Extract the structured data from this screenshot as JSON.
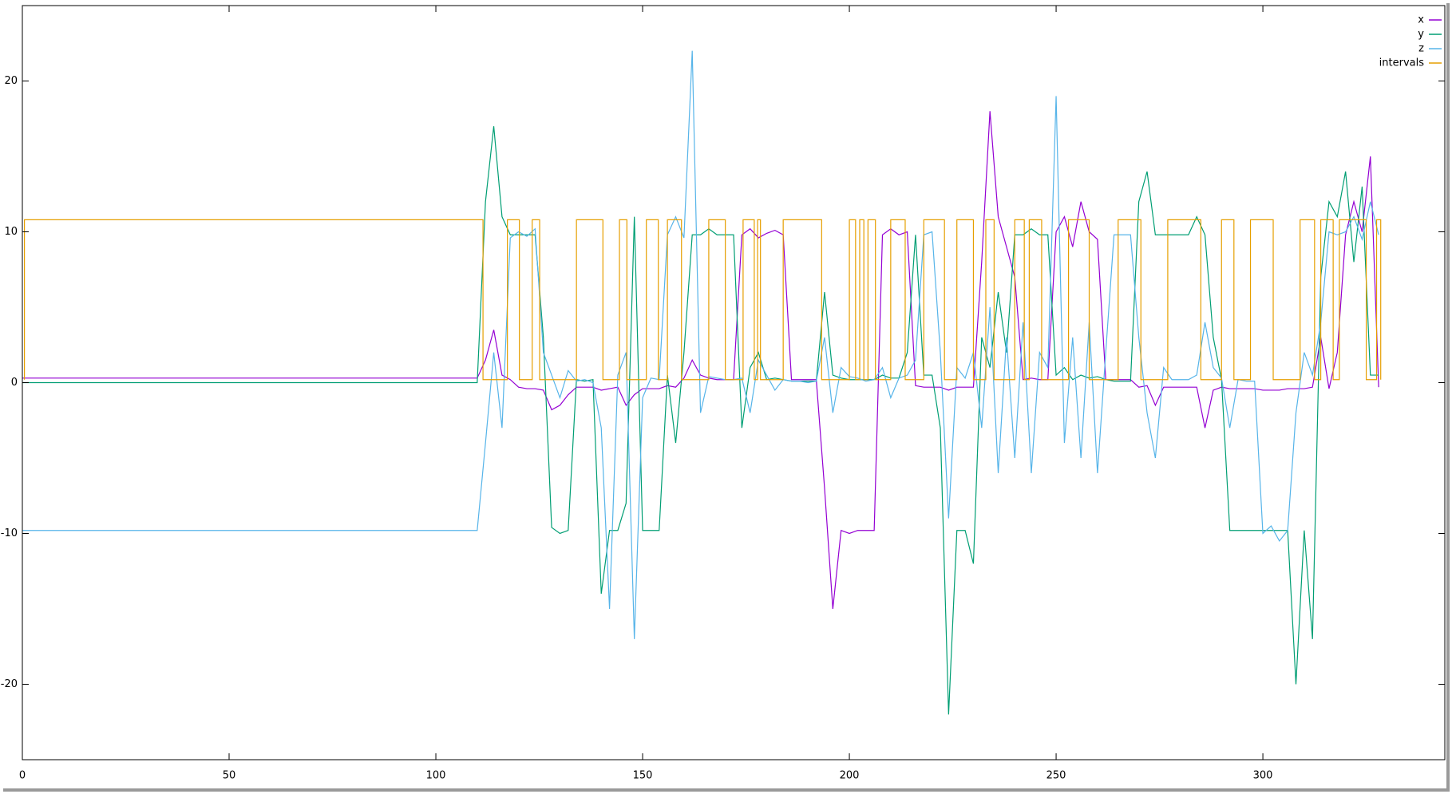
{
  "chart_data": {
    "type": "line",
    "x": [
      0,
      110,
      112,
      114,
      116,
      118,
      120,
      122,
      124,
      126,
      128,
      130,
      132,
      134,
      136,
      138,
      140,
      142,
      144,
      146,
      148,
      150,
      152,
      154,
      156,
      158,
      160,
      162,
      164,
      166,
      168,
      170,
      172,
      174,
      176,
      178,
      180,
      182,
      184,
      186,
      188,
      190,
      192,
      194,
      196,
      198,
      200,
      202,
      204,
      206,
      208,
      210,
      212,
      214,
      216,
      218,
      220,
      222,
      224,
      226,
      228,
      230,
      232,
      234,
      236,
      238,
      240,
      242,
      244,
      246,
      248,
      250,
      252,
      254,
      256,
      258,
      260,
      262,
      264,
      266,
      268,
      270,
      272,
      274,
      276,
      278,
      280,
      282,
      284,
      286,
      288,
      290,
      292,
      294,
      296,
      298,
      300,
      302,
      304,
      306,
      308,
      310,
      312,
      314,
      316,
      318,
      320,
      322,
      324,
      326,
      328
    ],
    "series": [
      {
        "name": "x",
        "color": "#9400d3",
        "values": [
          0.3,
          0.3,
          1.5,
          3.5,
          0.5,
          0.2,
          -0.3,
          -0.4,
          -0.4,
          -0.5,
          -1.8,
          -1.5,
          -0.8,
          -0.3,
          -0.3,
          -0.3,
          -0.5,
          -0.4,
          -0.3,
          -1.5,
          -0.8,
          -0.4,
          -0.4,
          -0.4,
          -0.2,
          -0.3,
          0.3,
          1.5,
          0.5,
          0.3,
          0.2,
          0.2,
          0.2,
          9.8,
          10.2,
          9.6,
          9.9,
          10.1,
          9.8,
          0.2,
          0.2,
          0.2,
          0.2,
          -7,
          -15,
          -9.8,
          -10,
          -9.8,
          -9.8,
          -9.8,
          9.8,
          10.2,
          9.8,
          10,
          -0.2,
          -0.3,
          -0.3,
          -0.3,
          -0.5,
          -0.3,
          -0.3,
          -0.3,
          8,
          18,
          11,
          9,
          7,
          0.2,
          0.3,
          0.2,
          0.2,
          10,
          11,
          9,
          12,
          10,
          9.5,
          0.2,
          0.2,
          0.2,
          0.2,
          -0.3,
          -0.2,
          -1.5,
          -0.3,
          -0.3,
          -0.3,
          -0.3,
          -0.3,
          -3,
          -0.5,
          -0.3,
          -0.4,
          -0.4,
          -0.4,
          -0.4,
          -0.5,
          -0.5,
          -0.5,
          -0.4,
          -0.4,
          -0.4,
          -0.3,
          3,
          -0.4,
          2,
          9.8,
          12,
          10,
          15,
          -0.3
        ]
      },
      {
        "name": "y",
        "color": "#009e73",
        "values": [
          0,
          0,
          12,
          17,
          11,
          9.8,
          9.8,
          9.8,
          9.8,
          3,
          -9.6,
          -10,
          -9.8,
          0.2,
          0.1,
          0.2,
          -14,
          -9.8,
          -9.8,
          -8,
          11,
          -9.8,
          -9.8,
          -9.8,
          0.5,
          -4,
          2,
          9.8,
          9.8,
          10.2,
          9.8,
          9.8,
          9.8,
          -3,
          1,
          2,
          0.2,
          0.3,
          0.2,
          0.1,
          0.1,
          0.1,
          0.1,
          6,
          0.5,
          0.3,
          0.2,
          0.2,
          0.2,
          0.2,
          0.5,
          0.3,
          0.3,
          2,
          9.8,
          0.5,
          0.5,
          -3,
          -22,
          -9.8,
          -9.8,
          -12,
          3,
          1,
          6,
          2,
          9.8,
          9.8,
          10.2,
          9.8,
          9.8,
          0.5,
          1,
          0.2,
          0.5,
          0.3,
          0.4,
          0.2,
          0.1,
          0.1,
          0.1,
          12,
          14,
          9.8,
          9.8,
          9.8,
          9.8,
          9.8,
          11,
          9.8,
          3,
          0.2,
          -9.8,
          -9.8,
          -9.8,
          -9.8,
          -9.8,
          -9.8,
          -9.8,
          -9.8,
          -20,
          -9.8,
          -17,
          7,
          12,
          11,
          14,
          8,
          13,
          0.5,
          0.5
        ]
      },
      {
        "name": "z",
        "color": "#56b4e9",
        "values": [
          -9.8,
          -9.8,
          -4,
          2,
          -3,
          9.6,
          10,
          9.7,
          10.2,
          2,
          0.5,
          -1,
          0.8,
          0.1,
          0.2,
          0,
          -3,
          -15,
          0.5,
          2,
          -17,
          -1,
          0.3,
          0.2,
          9.8,
          11,
          9.6,
          22,
          -2,
          0.4,
          0.3,
          0.2,
          0.2,
          0.3,
          -2,
          1.5,
          0.5,
          -0.5,
          0.2,
          0.1,
          0.1,
          0,
          0.1,
          3,
          -2,
          1,
          0.4,
          0.3,
          0.1,
          0.2,
          1,
          -1,
          0.3,
          0.5,
          1.5,
          9.8,
          10,
          2,
          -9,
          1,
          0.3,
          2,
          -3,
          5,
          -6,
          3,
          -5,
          4,
          -6,
          2,
          1,
          19,
          -4,
          3,
          -5,
          4,
          -6,
          2,
          9.8,
          9.8,
          9.8,
          3,
          -2,
          -5,
          1,
          0.2,
          0.2,
          0.2,
          0.5,
          4,
          1,
          0.3,
          -3,
          0.2,
          0.1,
          0.1,
          -10,
          -9.5,
          -10.5,
          -9.8,
          -2,
          2,
          0.5,
          4,
          10,
          9.8,
          10,
          11,
          9.5,
          12,
          9.8
        ]
      },
      {
        "name": "intervals",
        "color": "#e69f00",
        "x": [
          0.5,
          0.5,
          111.4,
          111.4,
          117.3,
          117.3,
          120.2,
          120.2,
          123.3,
          123.3,
          125.1,
          125.1,
          134,
          134,
          140.4,
          140.4,
          144.4,
          144.4,
          146.2,
          146.2,
          150.9,
          150.9,
          153.8,
          153.8,
          156,
          156,
          159.4,
          159.4,
          166,
          166,
          170,
          170,
          174.3,
          174.3,
          177,
          177,
          177.8,
          177.8,
          178.5,
          178.5,
          184,
          184,
          193.3,
          193.3,
          200,
          200,
          201.5,
          201.5,
          202.5,
          202.5,
          203.5,
          203.5,
          204.5,
          204.5,
          206.3,
          206.3,
          210,
          210,
          213.5,
          213.5,
          218,
          218,
          223,
          223,
          226,
          226,
          230,
          230,
          233,
          233,
          235,
          235,
          240,
          240,
          242.3,
          242.3,
          243.5,
          243.5,
          246.5,
          246.5,
          253,
          253,
          258,
          258,
          265,
          265,
          270.5,
          270.5,
          277,
          277,
          285,
          285,
          290,
          290,
          293,
          293,
          297,
          297,
          302.5,
          302.5,
          309,
          309,
          312.5,
          312.5,
          314,
          314,
          317,
          317,
          318.5,
          318.5,
          325,
          325,
          327.5,
          327.5,
          328.5,
          328.5
        ],
        "values": [
          0.2,
          10.8,
          10.8,
          0.2,
          0.2,
          10.8,
          10.8,
          0.2,
          0.2,
          10.8,
          10.8,
          0.2,
          0.2,
          10.8,
          10.8,
          0.2,
          0.2,
          10.8,
          10.8,
          0.2,
          0.2,
          10.8,
          10.8,
          0.2,
          0.2,
          10.8,
          10.8,
          0.2,
          0.2,
          10.8,
          10.8,
          0.2,
          0.2,
          10.8,
          10.8,
          0.2,
          0.2,
          10.8,
          10.8,
          0.2,
          0.2,
          10.8,
          10.8,
          0.2,
          0.2,
          10.8,
          10.8,
          0.2,
          0.2,
          10.8,
          10.8,
          0.2,
          0.2,
          10.8,
          10.8,
          0.2,
          0.2,
          10.8,
          10.8,
          0.2,
          0.2,
          10.8,
          10.8,
          0.2,
          0.2,
          10.8,
          10.8,
          0.2,
          0.2,
          10.8,
          10.8,
          0.2,
          0.2,
          10.8,
          10.8,
          0.2,
          0.2,
          10.8,
          10.8,
          0.2,
          0.2,
          10.8,
          10.8,
          0.2,
          0.2,
          10.8,
          10.8,
          0.2,
          0.2,
          10.8,
          10.8,
          0.2,
          0.2,
          10.8,
          10.8,
          0.2,
          0.2,
          10.8,
          10.8,
          0.2,
          0.2,
          10.8,
          10.8,
          0.2,
          0.2,
          10.8,
          10.8,
          0.2,
          0.2,
          10.8,
          10.8,
          0.2,
          0.2,
          10.8,
          10.8,
          0.2
        ]
      }
    ],
    "xlim": [
      0,
      344
    ],
    "ylim": [
      -25,
      25
    ],
    "xticks": [
      0,
      50,
      100,
      150,
      200,
      250,
      300
    ],
    "yticks": [
      -20,
      -10,
      0,
      10,
      20
    ],
    "legend": "top right"
  }
}
